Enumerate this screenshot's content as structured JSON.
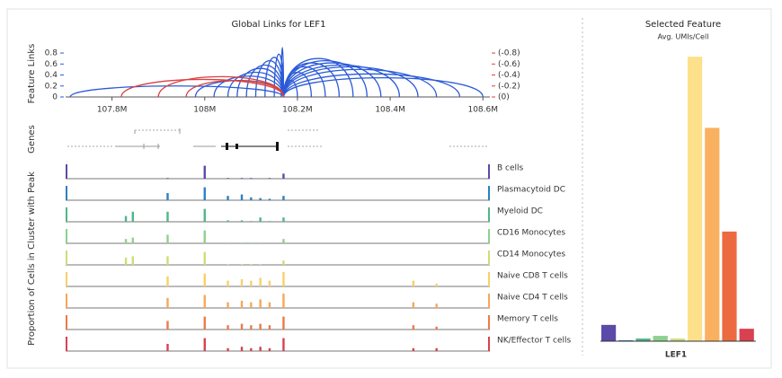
{
  "chart_data": [
    {
      "type": "arc",
      "title": "Global Links for LEF1",
      "ylabel": "Feature Links",
      "anchor": 108.17,
      "xlim": [
        107.7,
        108.615
      ],
      "xticks": [
        {
          "value": 107.8,
          "label": "107.8M"
        },
        {
          "value": 108.0,
          "label": "108M"
        },
        {
          "value": 108.2,
          "label": "108.2M"
        },
        {
          "value": 108.4,
          "label": "108.4M"
        },
        {
          "value": 108.6,
          "label": "108.6M"
        }
      ],
      "ylim": [
        0,
        0.85
      ],
      "yticks": [
        0,
        0.2,
        0.4,
        0.6,
        0.8
      ],
      "y2lim": [
        0,
        -0.85
      ],
      "y2ticks": [
        {
          "value": 0,
          "label": "(0)"
        },
        {
          "value": -0.2,
          "label": "(-0.2)"
        },
        {
          "value": -0.4,
          "label": "(-0.4)"
        },
        {
          "value": -0.6,
          "label": "(-0.6)"
        },
        {
          "value": -0.8,
          "label": "(-0.8)"
        }
      ],
      "y_color": "#2b5ad8",
      "y2_color": "#d94040",
      "series": [
        {
          "color": "#2b5ad8",
          "x": [
            107.71,
            107.98,
            108.02,
            108.05,
            108.07,
            108.09,
            108.11,
            108.13,
            108.15,
            108.165,
            108.2,
            108.23,
            108.26,
            108.29,
            108.32,
            108.35,
            108.38,
            108.42,
            108.46,
            108.5,
            108.55,
            108.6
          ],
          "values": [
            0.2,
            0.3,
            0.38,
            0.45,
            0.52,
            0.58,
            0.66,
            0.72,
            0.78,
            0.9,
            0.3,
            0.45,
            0.55,
            0.62,
            0.7,
            0.66,
            0.62,
            0.58,
            0.55,
            0.5,
            0.42,
            0.35
          ]
        },
        {
          "color": "#d94040",
          "axis": "y2",
          "x": [
            107.82,
            107.9,
            107.96
          ],
          "values": [
            -0.32,
            -0.37,
            -0.3
          ]
        }
      ]
    },
    {
      "type": "coverage",
      "ylabel": "Proportion of Cells in Cluster with Peak",
      "genes_label": "Genes",
      "ylim": [
        0,
        1
      ],
      "x": [
        107.83,
        107.845,
        107.92,
        108.0,
        108.05,
        108.08,
        108.1,
        108.12,
        108.14,
        108.17,
        108.45,
        108.5
      ],
      "series": [
        {
          "name": "B cells",
          "color": "#5b4aa8",
          "values": [
            0,
            0,
            0.05,
            0.9,
            0.05,
            0.05,
            0.05,
            0,
            0.05,
            0.35,
            0,
            0
          ]
        },
        {
          "name": "Plasmacytoid DC",
          "color": "#2f7fc0",
          "values": [
            0,
            0,
            0.5,
            0.9,
            0.3,
            0.4,
            0.2,
            0.15,
            0.1,
            0.3,
            0,
            0
          ]
        },
        {
          "name": "Myeloid DC",
          "color": "#4fb68a",
          "values": [
            0.4,
            0.7,
            0.7,
            0.9,
            0.1,
            0.1,
            0.05,
            0.3,
            0.05,
            0.3,
            0,
            0
          ]
        },
        {
          "name": "CD16 Monocytes",
          "color": "#8fd08f",
          "values": [
            0.3,
            0.4,
            0.6,
            0.9,
            0.05,
            0.05,
            0.05,
            0.05,
            0,
            0.3,
            0,
            0
          ]
        },
        {
          "name": "CD14 Monocytes",
          "color": "#c9e07a",
          "values": [
            0.5,
            0.6,
            0.6,
            0.9,
            0.05,
            0.05,
            0.05,
            0.05,
            0,
            0.3,
            0,
            0
          ]
        },
        {
          "name": "Naive CD8 T cells",
          "color": "#f7d06a",
          "values": [
            0,
            0,
            0.7,
            0.9,
            0.4,
            0.5,
            0.4,
            0.6,
            0.4,
            1,
            0.4,
            0.2
          ]
        },
        {
          "name": "Naive CD4 T cells",
          "color": "#f6a85a",
          "values": [
            0,
            0,
            0.7,
            0.9,
            0.4,
            0.5,
            0.4,
            0.6,
            0.4,
            1,
            0.4,
            0.3
          ]
        },
        {
          "name": "Memory T cells",
          "color": "#ec7a4a",
          "values": [
            0,
            0,
            0.6,
            0.9,
            0.3,
            0.4,
            0.3,
            0.4,
            0.3,
            0.9,
            0.3,
            0.2
          ]
        },
        {
          "name": "NK/Effector T cells",
          "color": "#d94050",
          "values": [
            0,
            0,
            0.5,
            0.9,
            0.2,
            0.3,
            0.2,
            0.3,
            0.2,
            0.9,
            0.2,
            0.2
          ]
        }
      ]
    },
    {
      "type": "bar",
      "title": "Selected Feature",
      "subtitle": "Avg. UMIs/Cell",
      "xlabel": "LEF1",
      "ylim": [
        0,
        1
      ],
      "colors": [
        "#5b4aa8",
        "#2f7fc0",
        "#4fb68a",
        "#8fd08f",
        "#c9e07a",
        "#fde08a",
        "#f9b060",
        "#ec6a40",
        "#d94050"
      ],
      "values": [
        0.055,
        0.003,
        0.009,
        0.018,
        0.009,
        0.96,
        0.72,
        0.37,
        0.042
      ]
    }
  ]
}
